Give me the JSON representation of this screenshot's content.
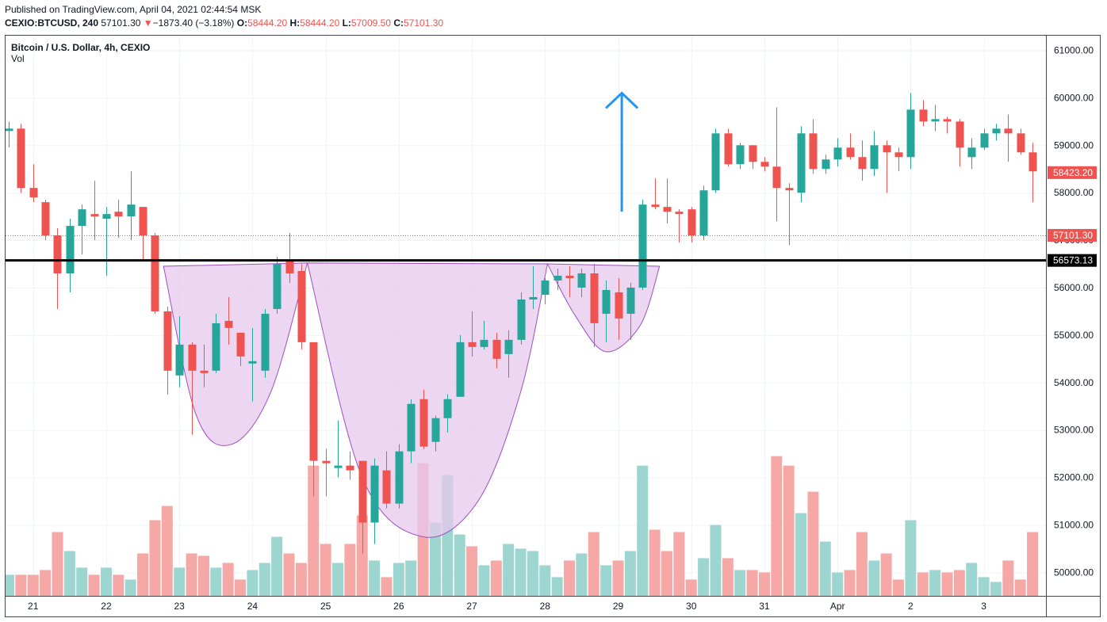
{
  "header": {
    "published": "Published on TradingView.com, April 04, 2021 02:44:54 MSK",
    "symbol": "CEXIO:BTCUSD, 240",
    "last": "57101.30",
    "change_arrow": "▼",
    "change": "−1873.40 (−3.18%)",
    "o_label": "O:",
    "o": "58444.20",
    "h_label": "H:",
    "h": "58444.20",
    "l_label": "L:",
    "l": "57009.50",
    "c_label": "C:",
    "c": "57101.30"
  },
  "legend": {
    "title": "Bitcoin / U.S. Dollar, 4h, CEXIO",
    "vol": "Vol"
  },
  "colors": {
    "up": "#26a69a",
    "down": "#ef5350",
    "up_vol": "#9dd6d0",
    "down_vol": "#f5a8a6",
    "neckline": "#000000",
    "arrow": "#2196f3",
    "pattern_fill": "#e6c8ee",
    "pattern_stroke": "#9c4fbf"
  },
  "chart_data": {
    "type": "candlestick",
    "ylim": [
      49300,
      61500
    ],
    "y_ticks": [
      "61000.00",
      "60000.00",
      "59000.00",
      "58000.00",
      "57000.00",
      "56000.00",
      "55000.00",
      "54000.00",
      "53000.00",
      "52000.00",
      "51000.00",
      "50000.00"
    ],
    "x_ticks": [
      {
        "label": "21",
        "i": 2
      },
      {
        "label": "22",
        "i": 8
      },
      {
        "label": "23",
        "i": 14
      },
      {
        "label": "24",
        "i": 20
      },
      {
        "label": "25",
        "i": 26
      },
      {
        "label": "26",
        "i": 32
      },
      {
        "label": "27",
        "i": 38
      },
      {
        "label": "28",
        "i": 44
      },
      {
        "label": "29",
        "i": 50
      },
      {
        "label": "30",
        "i": 56
      },
      {
        "label": "31",
        "i": 62
      },
      {
        "label": "Apr",
        "i": 68
      },
      {
        "label": "2",
        "i": 74
      },
      {
        "label": "3",
        "i": 80
      }
    ],
    "price_labels": [
      {
        "text": "58423.20",
        "value": 58423.2,
        "color": "#ef5350"
      },
      {
        "text": "57101.30",
        "value": 57101.3,
        "color": "#ef5350"
      },
      {
        "text": "56573.13",
        "value": 56573.13,
        "color": "#000000"
      }
    ],
    "neckline": 56573.13,
    "last_price": 57101.3,
    "arrow": {
      "i": 50.3,
      "from": 57600,
      "to": 60100
    },
    "candles": [
      {
        "o": 59300,
        "h": 59500,
        "l": 58950,
        "c": 59350,
        "v": 49950
      },
      {
        "o": 59350,
        "h": 59450,
        "l": 58000,
        "c": 58100,
        "v": 49950
      },
      {
        "o": 58100,
        "h": 58600,
        "l": 57800,
        "c": 57900,
        "v": 49950
      },
      {
        "o": 57800,
        "h": 57850,
        "l": 57000,
        "c": 57100,
        "v": 50050
      },
      {
        "o": 57100,
        "h": 57250,
        "l": 55550,
        "c": 56300,
        "v": 50850
      },
      {
        "o": 56300,
        "h": 57450,
        "l": 55900,
        "c": 57300,
        "v": 50450
      },
      {
        "o": 57300,
        "h": 57750,
        "l": 56700,
        "c": 57650,
        "v": 50100
      },
      {
        "o": 57550,
        "h": 58250,
        "l": 57000,
        "c": 57500,
        "v": 49950
      },
      {
        "o": 57450,
        "h": 57700,
        "l": 56250,
        "c": 57550,
        "v": 50100
      },
      {
        "o": 57600,
        "h": 57850,
        "l": 57050,
        "c": 57500,
        "v": 49950
      },
      {
        "o": 57500,
        "h": 58450,
        "l": 57000,
        "c": 57750,
        "v": 49850
      },
      {
        "o": 57700,
        "h": 57700,
        "l": 56600,
        "c": 57100,
        "v": 50400
      },
      {
        "o": 57100,
        "h": 57150,
        "l": 55450,
        "c": 55500,
        "v": 51100
      },
      {
        "o": 55500,
        "h": 55600,
        "l": 53750,
        "c": 54250,
        "v": 51400
      },
      {
        "o": 54150,
        "h": 55400,
        "l": 53900,
        "c": 54800,
        "v": 50100
      },
      {
        "o": 54800,
        "h": 54850,
        "l": 52900,
        "c": 54250,
        "v": 50400
      },
      {
        "o": 54250,
        "h": 54800,
        "l": 53900,
        "c": 54200,
        "v": 50350
      },
      {
        "o": 54250,
        "h": 55450,
        "l": 54200,
        "c": 55250,
        "v": 50100
      },
      {
        "o": 55300,
        "h": 55800,
        "l": 54800,
        "c": 55150,
        "v": 50200
      },
      {
        "o": 55050,
        "h": 55050,
        "l": 54350,
        "c": 54550,
        "v": 49850
      },
      {
        "o": 54400,
        "h": 55150,
        "l": 53600,
        "c": 54450,
        "v": 50050
      },
      {
        "o": 54250,
        "h": 55550,
        "l": 54100,
        "c": 55450,
        "v": 50200
      },
      {
        "o": 55550,
        "h": 56650,
        "l": 55450,
        "c": 56500,
        "v": 50750
      },
      {
        "o": 56550,
        "h": 57150,
        "l": 56100,
        "c": 56300,
        "v": 50400
      },
      {
        "o": 56350,
        "h": 56500,
        "l": 54700,
        "c": 54850,
        "v": 50200
      },
      {
        "o": 54850,
        "h": 54850,
        "l": 51600,
        "c": 52350,
        "v": 52250
      },
      {
        "o": 52350,
        "h": 52600,
        "l": 51600,
        "c": 52300,
        "v": 50600
      },
      {
        "o": 52200,
        "h": 53200,
        "l": 52000,
        "c": 52250,
        "v": 50200
      },
      {
        "o": 52250,
        "h": 52550,
        "l": 51950,
        "c": 52150,
        "v": 50600
      },
      {
        "o": 52350,
        "h": 52350,
        "l": 50400,
        "c": 51050,
        "v": 51200
      },
      {
        "o": 51050,
        "h": 52400,
        "l": 50600,
        "c": 52250,
        "v": 50250
      },
      {
        "o": 52150,
        "h": 52550,
        "l": 51350,
        "c": 51450,
        "v": 49900
      },
      {
        "o": 51450,
        "h": 52700,
        "l": 51350,
        "c": 52550,
        "v": 50200
      },
      {
        "o": 52550,
        "h": 53650,
        "l": 52300,
        "c": 53550,
        "v": 50250
      },
      {
        "o": 53650,
        "h": 53850,
        "l": 52600,
        "c": 52650,
        "v": 52300
      },
      {
        "o": 52750,
        "h": 53300,
        "l": 52550,
        "c": 53250,
        "v": 51050
      },
      {
        "o": 53250,
        "h": 53750,
        "l": 52950,
        "c": 53650,
        "v": 52050
      },
      {
        "o": 53700,
        "h": 55000,
        "l": 53700,
        "c": 54850,
        "v": 50800
      },
      {
        "o": 54850,
        "h": 55500,
        "l": 54550,
        "c": 54750,
        "v": 50550
      },
      {
        "o": 54750,
        "h": 55300,
        "l": 54700,
        "c": 54900,
        "v": 50150
      },
      {
        "o": 54900,
        "h": 55050,
        "l": 54300,
        "c": 54500,
        "v": 50250
      },
      {
        "o": 54600,
        "h": 55100,
        "l": 54100,
        "c": 54900,
        "v": 50600
      },
      {
        "o": 54900,
        "h": 55900,
        "l": 54800,
        "c": 55750,
        "v": 50500
      },
      {
        "o": 55750,
        "h": 56450,
        "l": 55550,
        "c": 55800,
        "v": 50450
      },
      {
        "o": 55850,
        "h": 56200,
        "l": 55650,
        "c": 56150,
        "v": 50150
      },
      {
        "o": 56150,
        "h": 56400,
        "l": 55950,
        "c": 56250,
        "v": 49900
      },
      {
        "o": 56250,
        "h": 56450,
        "l": 55800,
        "c": 56200,
        "v": 50250
      },
      {
        "o": 56000,
        "h": 56400,
        "l": 55800,
        "c": 56300,
        "v": 50400
      },
      {
        "o": 56300,
        "h": 56500,
        "l": 54750,
        "c": 55250,
        "v": 50850
      },
      {
        "o": 55450,
        "h": 56150,
        "l": 54850,
        "c": 55950,
        "v": 50150
      },
      {
        "o": 55900,
        "h": 56200,
        "l": 54900,
        "c": 55350,
        "v": 50250
      },
      {
        "o": 55450,
        "h": 56100,
        "l": 54900,
        "c": 56000,
        "v": 50450
      },
      {
        "o": 56000,
        "h": 57850,
        "l": 55950,
        "c": 57750,
        "v": 52250
      },
      {
        "o": 57750,
        "h": 58300,
        "l": 57650,
        "c": 57700,
        "v": 50900
      },
      {
        "o": 57700,
        "h": 58300,
        "l": 57350,
        "c": 57600,
        "v": 50450
      },
      {
        "o": 57600,
        "h": 57650,
        "l": 56950,
        "c": 57550,
        "v": 50850
      },
      {
        "o": 57650,
        "h": 57700,
        "l": 56950,
        "c": 57100,
        "v": 49850
      },
      {
        "o": 57100,
        "h": 58150,
        "l": 57000,
        "c": 58050,
        "v": 50300
      },
      {
        "o": 58050,
        "h": 59350,
        "l": 58000,
        "c": 59250,
        "v": 51000
      },
      {
        "o": 59250,
        "h": 59350,
        "l": 58550,
        "c": 58600,
        "v": 50300
      },
      {
        "o": 58600,
        "h": 59050,
        "l": 58500,
        "c": 59000,
        "v": 50050
      },
      {
        "o": 59000,
        "h": 59000,
        "l": 58500,
        "c": 58650,
        "v": 50050
      },
      {
        "o": 58650,
        "h": 58750,
        "l": 58450,
        "c": 58550,
        "v": 50000
      },
      {
        "o": 58550,
        "h": 59800,
        "l": 57400,
        "c": 58100,
        "v": 52450
      },
      {
        "o": 58100,
        "h": 58200,
        "l": 56900,
        "c": 58050,
        "v": 52250
      },
      {
        "o": 58000,
        "h": 59400,
        "l": 57800,
        "c": 59250,
        "v": 51250
      },
      {
        "o": 59250,
        "h": 59550,
        "l": 58400,
        "c": 58500,
        "v": 51700
      },
      {
        "o": 58500,
        "h": 58800,
        "l": 58400,
        "c": 58700,
        "v": 50650
      },
      {
        "o": 58700,
        "h": 59150,
        "l": 58550,
        "c": 58950,
        "v": 50000
      },
      {
        "o": 58950,
        "h": 59250,
        "l": 58700,
        "c": 58750,
        "v": 50050
      },
      {
        "o": 58750,
        "h": 59100,
        "l": 58250,
        "c": 58500,
        "v": 50850
      },
      {
        "o": 58500,
        "h": 59300,
        "l": 58350,
        "c": 59000,
        "v": 50250
      },
      {
        "o": 59000,
        "h": 59100,
        "l": 58000,
        "c": 58850,
        "v": 50400
      },
      {
        "o": 58850,
        "h": 58950,
        "l": 58450,
        "c": 58750,
        "v": 49850
      },
      {
        "o": 58750,
        "h": 60100,
        "l": 58500,
        "c": 59750,
        "v": 51100
      },
      {
        "o": 59750,
        "h": 59950,
        "l": 59400,
        "c": 59500,
        "v": 50000
      },
      {
        "o": 59500,
        "h": 59850,
        "l": 59300,
        "c": 59550,
        "v": 50050
      },
      {
        "o": 59550,
        "h": 59600,
        "l": 59250,
        "c": 59500,
        "v": 50000
      },
      {
        "o": 59500,
        "h": 59550,
        "l": 58550,
        "c": 58950,
        "v": 50050
      },
      {
        "o": 58750,
        "h": 59150,
        "l": 58500,
        "c": 58950,
        "v": 50200
      },
      {
        "o": 58950,
        "h": 59350,
        "l": 58900,
        "c": 59250,
        "v": 49900
      },
      {
        "o": 59250,
        "h": 59450,
        "l": 59100,
        "c": 59350,
        "v": 49800
      },
      {
        "o": 59350,
        "h": 59650,
        "l": 58650,
        "c": 59250,
        "v": 50250
      },
      {
        "o": 59250,
        "h": 59350,
        "l": 58800,
        "c": 58850,
        "v": 49850
      },
      {
        "o": 58850,
        "h": 59050,
        "l": 57800,
        "c": 58450,
        "v": 50850
      }
    ]
  }
}
